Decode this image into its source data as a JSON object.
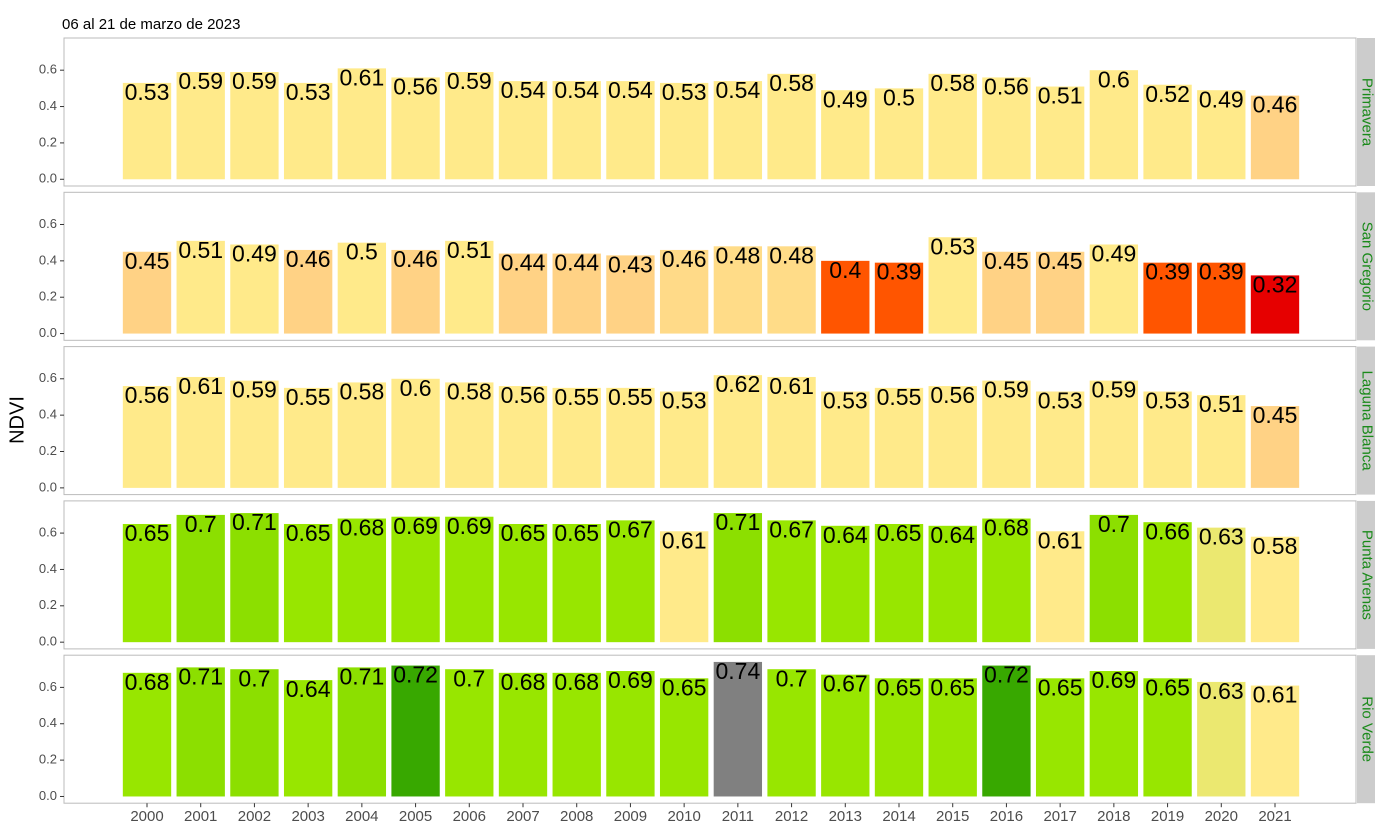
{
  "title": "06 al 21 de marzo de 2023",
  "y_label": "NDVI",
  "chart_data": [
    {
      "type": "bar",
      "strip": "Primavera",
      "categories": [
        "2000",
        "2001",
        "2002",
        "2003",
        "2004",
        "2005",
        "2006",
        "2007",
        "2008",
        "2009",
        "2010",
        "2011",
        "2012",
        "2013",
        "2014",
        "2015",
        "2016",
        "2017",
        "2018",
        "2019",
        "2020",
        "2021"
      ],
      "values": [
        0.53,
        0.59,
        0.59,
        0.53,
        0.61,
        0.56,
        0.59,
        0.54,
        0.54,
        0.54,
        0.53,
        0.54,
        0.58,
        0.49,
        0.5,
        0.58,
        0.56,
        0.51,
        0.6,
        0.52,
        0.49,
        0.46
      ],
      "colors": [
        "#ffea8a",
        "#ffea8a",
        "#ffea8a",
        "#ffea8a",
        "#ffea8a",
        "#ffea8a",
        "#ffea8a",
        "#ffea8a",
        "#ffea8a",
        "#ffea8a",
        "#ffea8a",
        "#ffea8a",
        "#ffea8a",
        "#ffea8a",
        "#ffea8a",
        "#ffea8a",
        "#ffea8a",
        "#ffea8a",
        "#ffea8a",
        "#ffea8a",
        "#ffea8a",
        "#ffd285"
      ],
      "ylim": [
        -0.037,
        0.777
      ],
      "yticks": [
        {
          "value": 0,
          "label": "0.0"
        },
        0.2,
        0.4,
        0.6
      ]
    },
    {
      "type": "bar",
      "strip": "San Gregorio",
      "categories": [
        "2000",
        "2001",
        "2002",
        "2003",
        "2004",
        "2005",
        "2006",
        "2007",
        "2008",
        "2009",
        "2010",
        "2011",
        "2012",
        "2013",
        "2014",
        "2015",
        "2016",
        "2017",
        "2018",
        "2019",
        "2020",
        "2021"
      ],
      "values": [
        0.45,
        0.51,
        0.49,
        0.46,
        0.5,
        0.46,
        0.51,
        0.44,
        0.44,
        0.43,
        0.46,
        0.48,
        0.48,
        0.4,
        0.39,
        0.53,
        0.45,
        0.45,
        0.49,
        0.39,
        0.39,
        0.32
      ],
      "colors": [
        "#ffd285",
        "#ffea8a",
        "#ffea8a",
        "#ffd285",
        "#ffea8a",
        "#ffd285",
        "#ffea8a",
        "#ffd285",
        "#ffd285",
        "#ffd285",
        "#ffda88",
        "#ffdc88",
        "#ffdc88",
        "#ff5500",
        "#ff5500",
        "#ffea8a",
        "#ffd285",
        "#ffd285",
        "#ffea8a",
        "#ff5500",
        "#ff5500",
        "#e60000"
      ],
      "ylim": [
        -0.037,
        0.777
      ],
      "yticks": [
        {
          "value": 0,
          "label": "0.0"
        },
        0.2,
        0.4,
        0.6
      ]
    },
    {
      "type": "bar",
      "strip": "Laguna Blanca",
      "categories": [
        "2000",
        "2001",
        "2002",
        "2003",
        "2004",
        "2005",
        "2006",
        "2007",
        "2008",
        "2009",
        "2010",
        "2011",
        "2012",
        "2013",
        "2014",
        "2015",
        "2016",
        "2017",
        "2018",
        "2019",
        "2020",
        "2021"
      ],
      "values": [
        0.56,
        0.61,
        0.59,
        0.55,
        0.58,
        0.6,
        0.58,
        0.56,
        0.55,
        0.55,
        0.53,
        0.62,
        0.61,
        0.53,
        0.55,
        0.56,
        0.59,
        0.53,
        0.59,
        0.53,
        0.51,
        0.45
      ],
      "colors": [
        "#ffea8a",
        "#ffea8a",
        "#ffea8a",
        "#ffea8a",
        "#ffea8a",
        "#ffea8a",
        "#ffea8a",
        "#ffea8a",
        "#ffea8a",
        "#ffea8a",
        "#ffea8a",
        "#ffea8a",
        "#ffea8a",
        "#ffea8a",
        "#ffea8a",
        "#ffea8a",
        "#ffea8a",
        "#ffea8a",
        "#ffea8a",
        "#ffea8a",
        "#ffea8a",
        "#ffd285"
      ],
      "ylim": [
        -0.037,
        0.777
      ],
      "yticks": [
        {
          "value": 0,
          "label": "0.0"
        },
        0.2,
        0.4,
        0.6
      ]
    },
    {
      "type": "bar",
      "strip": "Punta Arenas",
      "categories": [
        "2000",
        "2001",
        "2002",
        "2003",
        "2004",
        "2005",
        "2006",
        "2007",
        "2008",
        "2009",
        "2010",
        "2011",
        "2012",
        "2013",
        "2014",
        "2015",
        "2016",
        "2017",
        "2018",
        "2019",
        "2020",
        "2021"
      ],
      "values": [
        0.65,
        0.7,
        0.71,
        0.65,
        0.68,
        0.69,
        0.69,
        0.65,
        0.65,
        0.67,
        0.61,
        0.71,
        0.67,
        0.64,
        0.65,
        0.64,
        0.68,
        0.61,
        0.7,
        0.66,
        0.63,
        0.58
      ],
      "colors": [
        "#98e600",
        "#8cdf00",
        "#8cdf00",
        "#98e600",
        "#98e600",
        "#98e600",
        "#98e600",
        "#98e600",
        "#98e600",
        "#98e600",
        "#ffea8a",
        "#8cdf00",
        "#98e600",
        "#98e600",
        "#98e600",
        "#98e600",
        "#98e600",
        "#ffea8a",
        "#8cdf00",
        "#98e600",
        "#ebe870",
        "#ffea8a"
      ],
      "ylim": [
        -0.037,
        0.777
      ],
      "yticks": [
        {
          "value": 0,
          "label": "0.0"
        },
        0.2,
        0.4,
        0.6
      ]
    },
    {
      "type": "bar",
      "strip": "Rio Verde",
      "categories": [
        "2000",
        "2001",
        "2002",
        "2003",
        "2004",
        "2005",
        "2006",
        "2007",
        "2008",
        "2009",
        "2010",
        "2011",
        "2012",
        "2013",
        "2014",
        "2015",
        "2016",
        "2017",
        "2018",
        "2019",
        "2020",
        "2021"
      ],
      "values": [
        0.68,
        0.71,
        0.7,
        0.64,
        0.71,
        0.72,
        0.7,
        0.68,
        0.68,
        0.69,
        0.65,
        0.74,
        0.7,
        0.67,
        0.65,
        0.65,
        0.72,
        0.65,
        0.69,
        0.65,
        0.63,
        0.61
      ],
      "colors": [
        "#98e600",
        "#8cdf00",
        "#8cdf00",
        "#98e600",
        "#8cdf00",
        "#38a800",
        "#98e600",
        "#98e600",
        "#98e600",
        "#98e600",
        "#98e600",
        "#808080",
        "#98e600",
        "#98e600",
        "#98e600",
        "#98e600",
        "#38a800",
        "#98e600",
        "#98e600",
        "#98e600",
        "#ebe870",
        "#ffea8a"
      ],
      "ylim": [
        -0.037,
        0.777
      ],
      "yticks": [
        {
          "value": 0,
          "label": "0.0"
        },
        0.2,
        0.4,
        0.6
      ]
    }
  ]
}
